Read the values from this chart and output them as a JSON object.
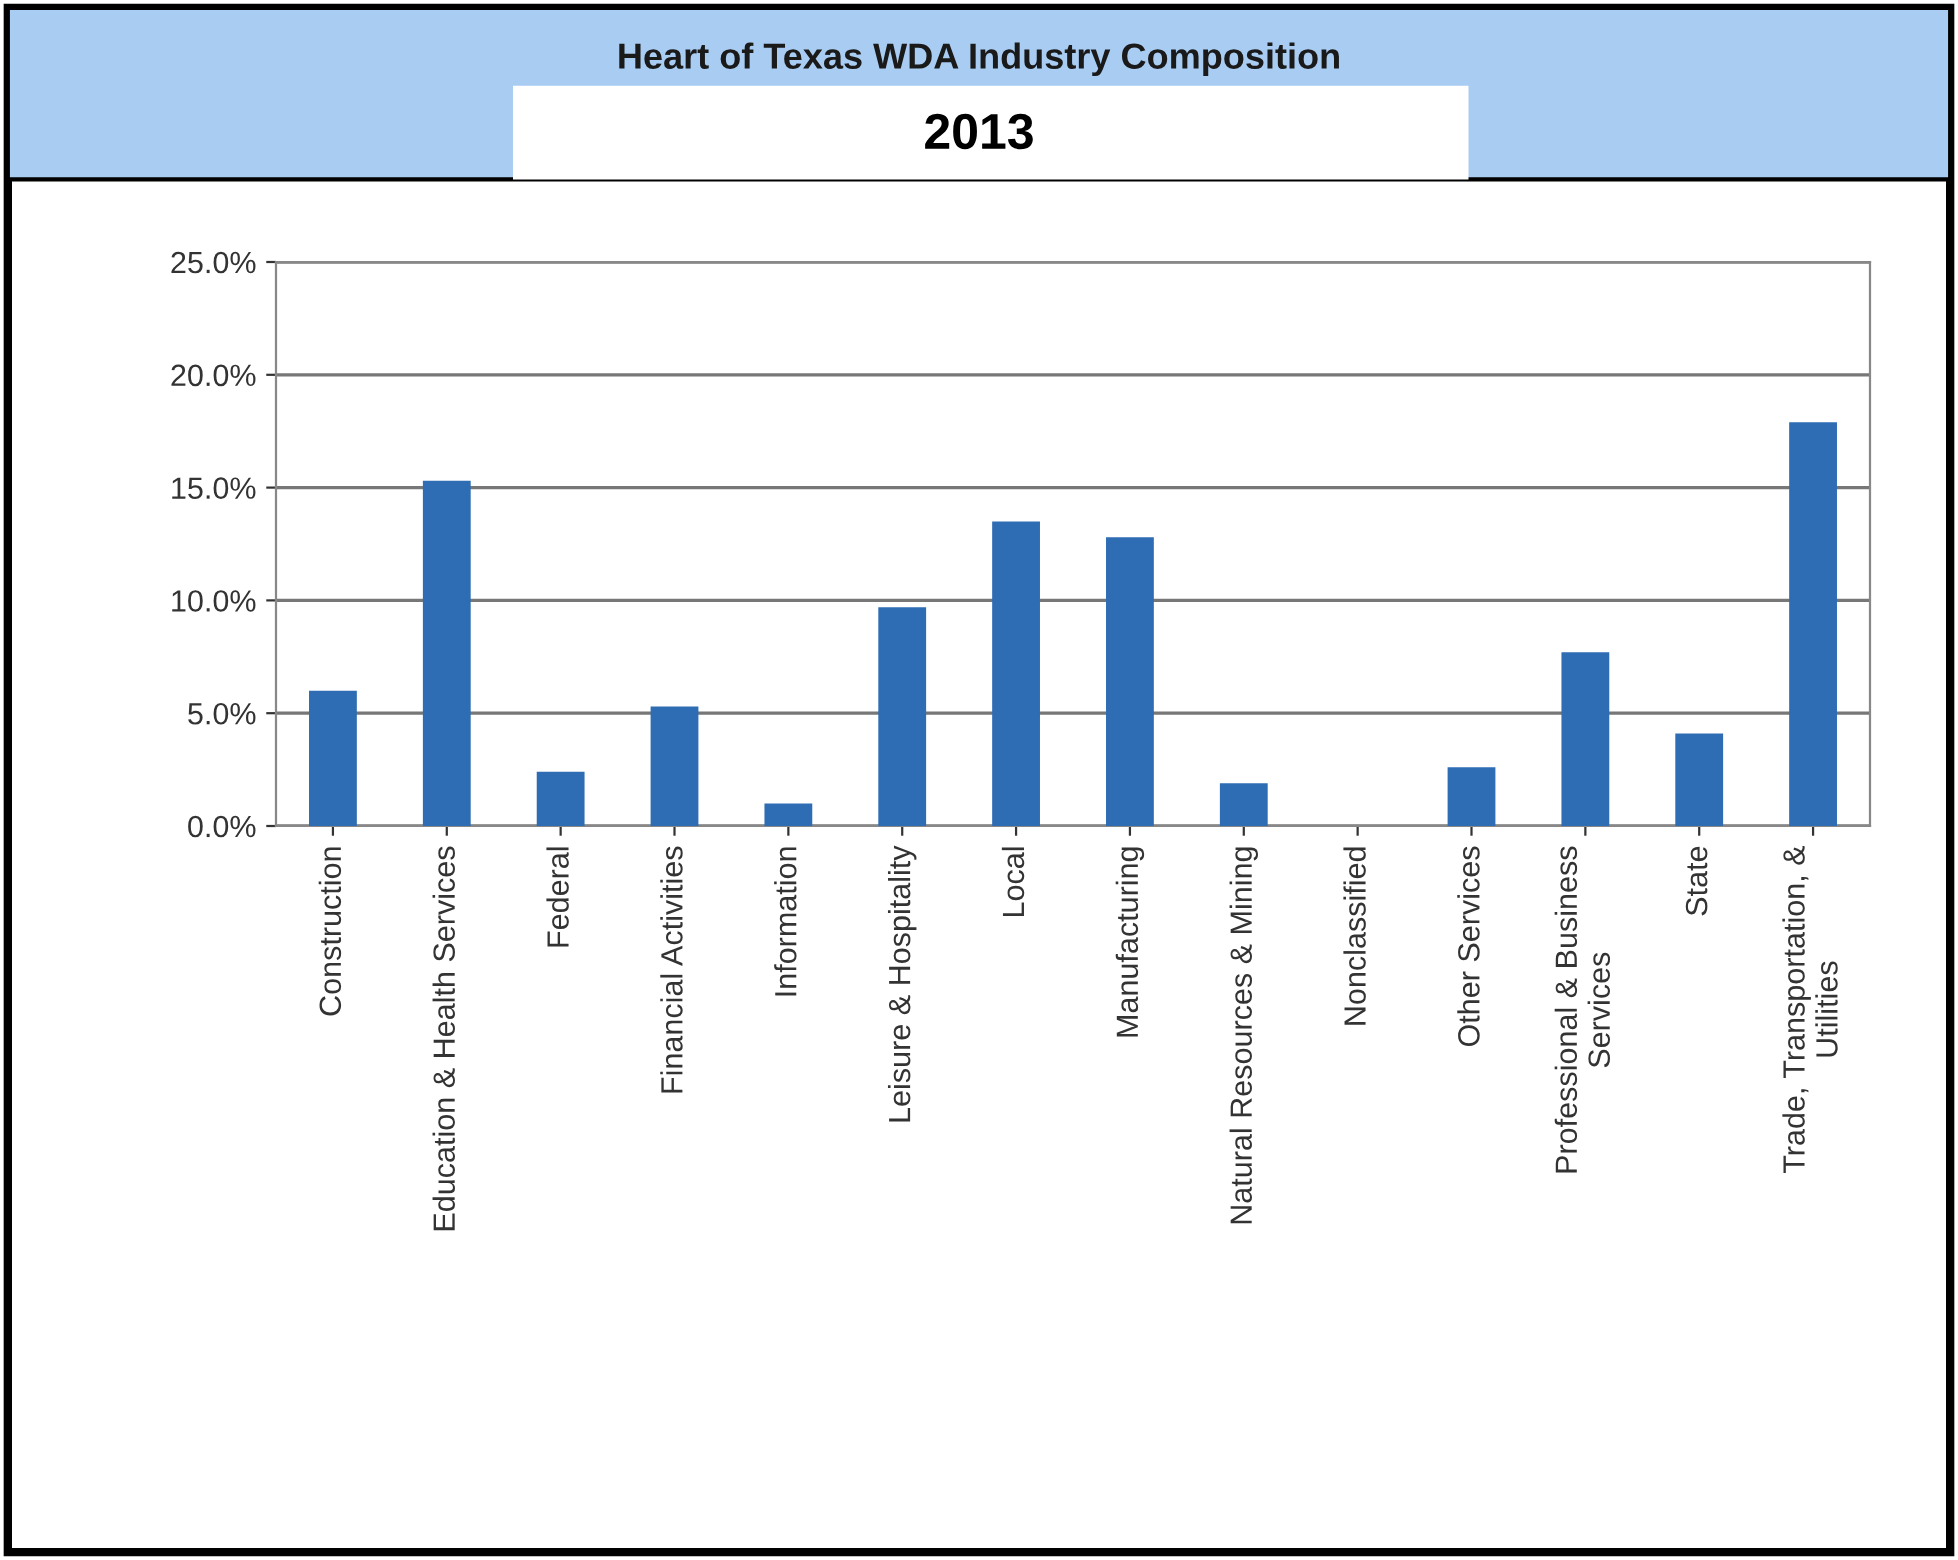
{
  "chart_data": {
    "type": "bar",
    "title": "Heart of Texas WDA Industry Composition",
    "subtitle": "2013",
    "categories": [
      "Construction",
      "Education & Health Services",
      "Federal",
      "Financial Activities",
      "Information",
      "Leisure & Hospitality",
      "Local",
      "Manufacturing",
      "Natural Resources & Mining",
      "Nonclassified",
      "Other Services",
      "Professional & Business\nServices",
      "State",
      "Trade, Transportation, &\nUtilities"
    ],
    "values": [
      6.0,
      15.3,
      2.4,
      5.3,
      1.0,
      9.7,
      13.5,
      12.8,
      1.9,
      0,
      2.6,
      7.7,
      4.1,
      17.9
    ],
    "color": "#2e6db4",
    "ylim": [
      0,
      25
    ],
    "yticks": [
      {
        "value": 0,
        "label": "0.0%"
      },
      {
        "value": 5,
        "label": "5.0%"
      },
      {
        "value": 10,
        "label": "10.0%"
      },
      {
        "value": 15,
        "label": "15.0%"
      },
      {
        "value": 20,
        "label": "20.0%"
      },
      {
        "value": 25,
        "label": "25.0%"
      }
    ],
    "grid": "y",
    "legend": false
  }
}
